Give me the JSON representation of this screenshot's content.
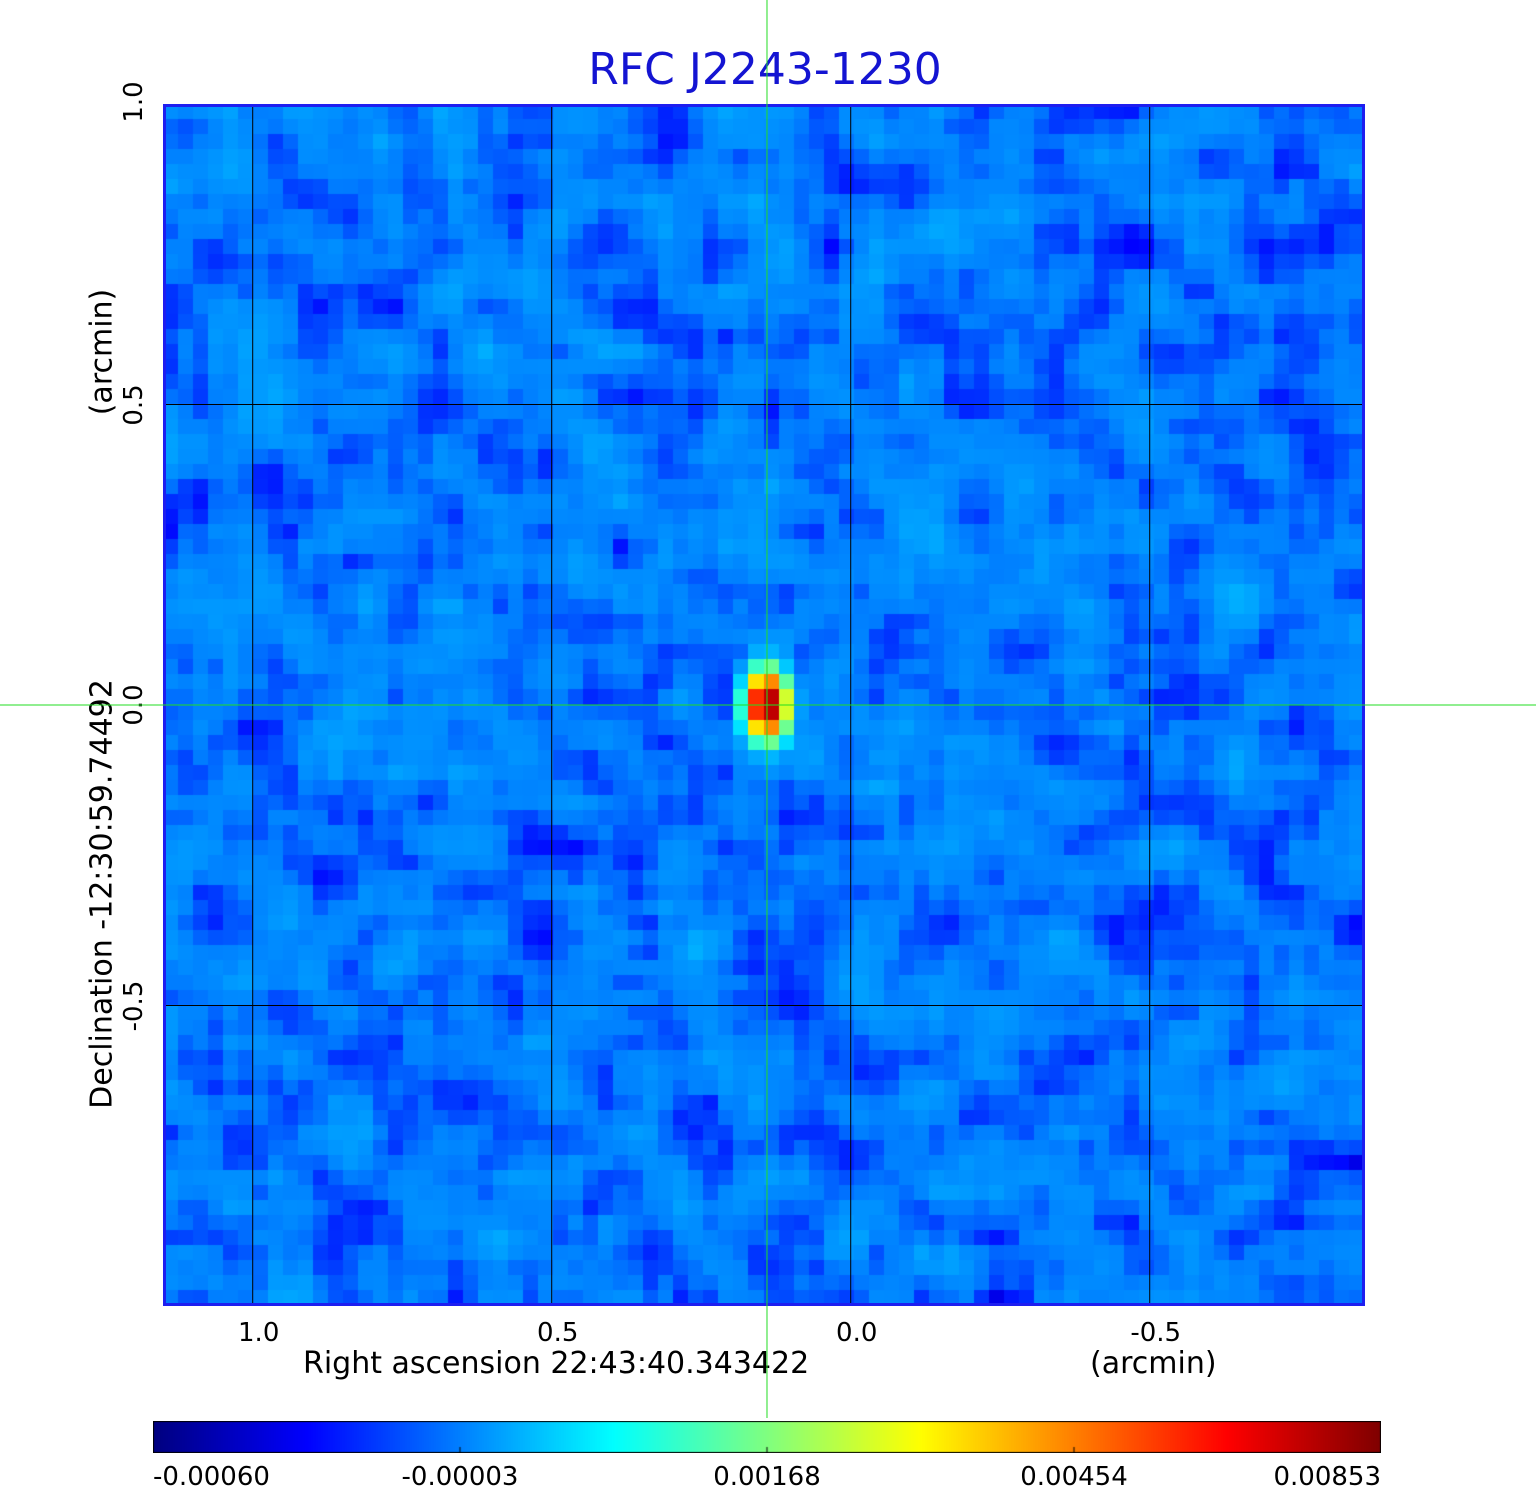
{
  "chart_data": {
    "type": "heatmap",
    "title": "RFC J2243-1230",
    "xlabel": "Right ascension  22:43:40.343422",
    "x_unit": "(arcmin)",
    "ylabel": "Declination  -12:30:59.74492",
    "y_unit": "(arcmin)",
    "x_ticks": [
      "1.0",
      "0.5",
      "0.0",
      "-0.5"
    ],
    "y_ticks": [
      "1.0",
      "0.5",
      "0.0",
      "-0.5"
    ],
    "x_tick_values": [
      1.0,
      0.5,
      0.0,
      -0.5
    ],
    "y_tick_values": [
      1.0,
      0.5,
      0.0,
      -0.5
    ],
    "xlim": [
      1.15,
      -0.86
    ],
    "ylim": [
      -1.0,
      1.0
    ],
    "grid": true,
    "colormap": "jet",
    "colorbar_ticks": [
      "-0.00060",
      "-0.00003",
      "0.00168",
      "0.00454",
      "0.00853"
    ],
    "colorbar_values": [
      -0.0006,
      -3e-05,
      0.00168,
      0.00454,
      0.00853
    ],
    "crosshair": {
      "x": 0.14,
      "y": 0.0
    },
    "peak": {
      "x": 0.14,
      "y": 0.0,
      "value": 0.00853
    },
    "background_level": -3e-05,
    "colors": {
      "title": "#1414d2",
      "frame": "#1e1ef0",
      "grid": "#000000",
      "crosshair": "#22dd22"
    }
  }
}
